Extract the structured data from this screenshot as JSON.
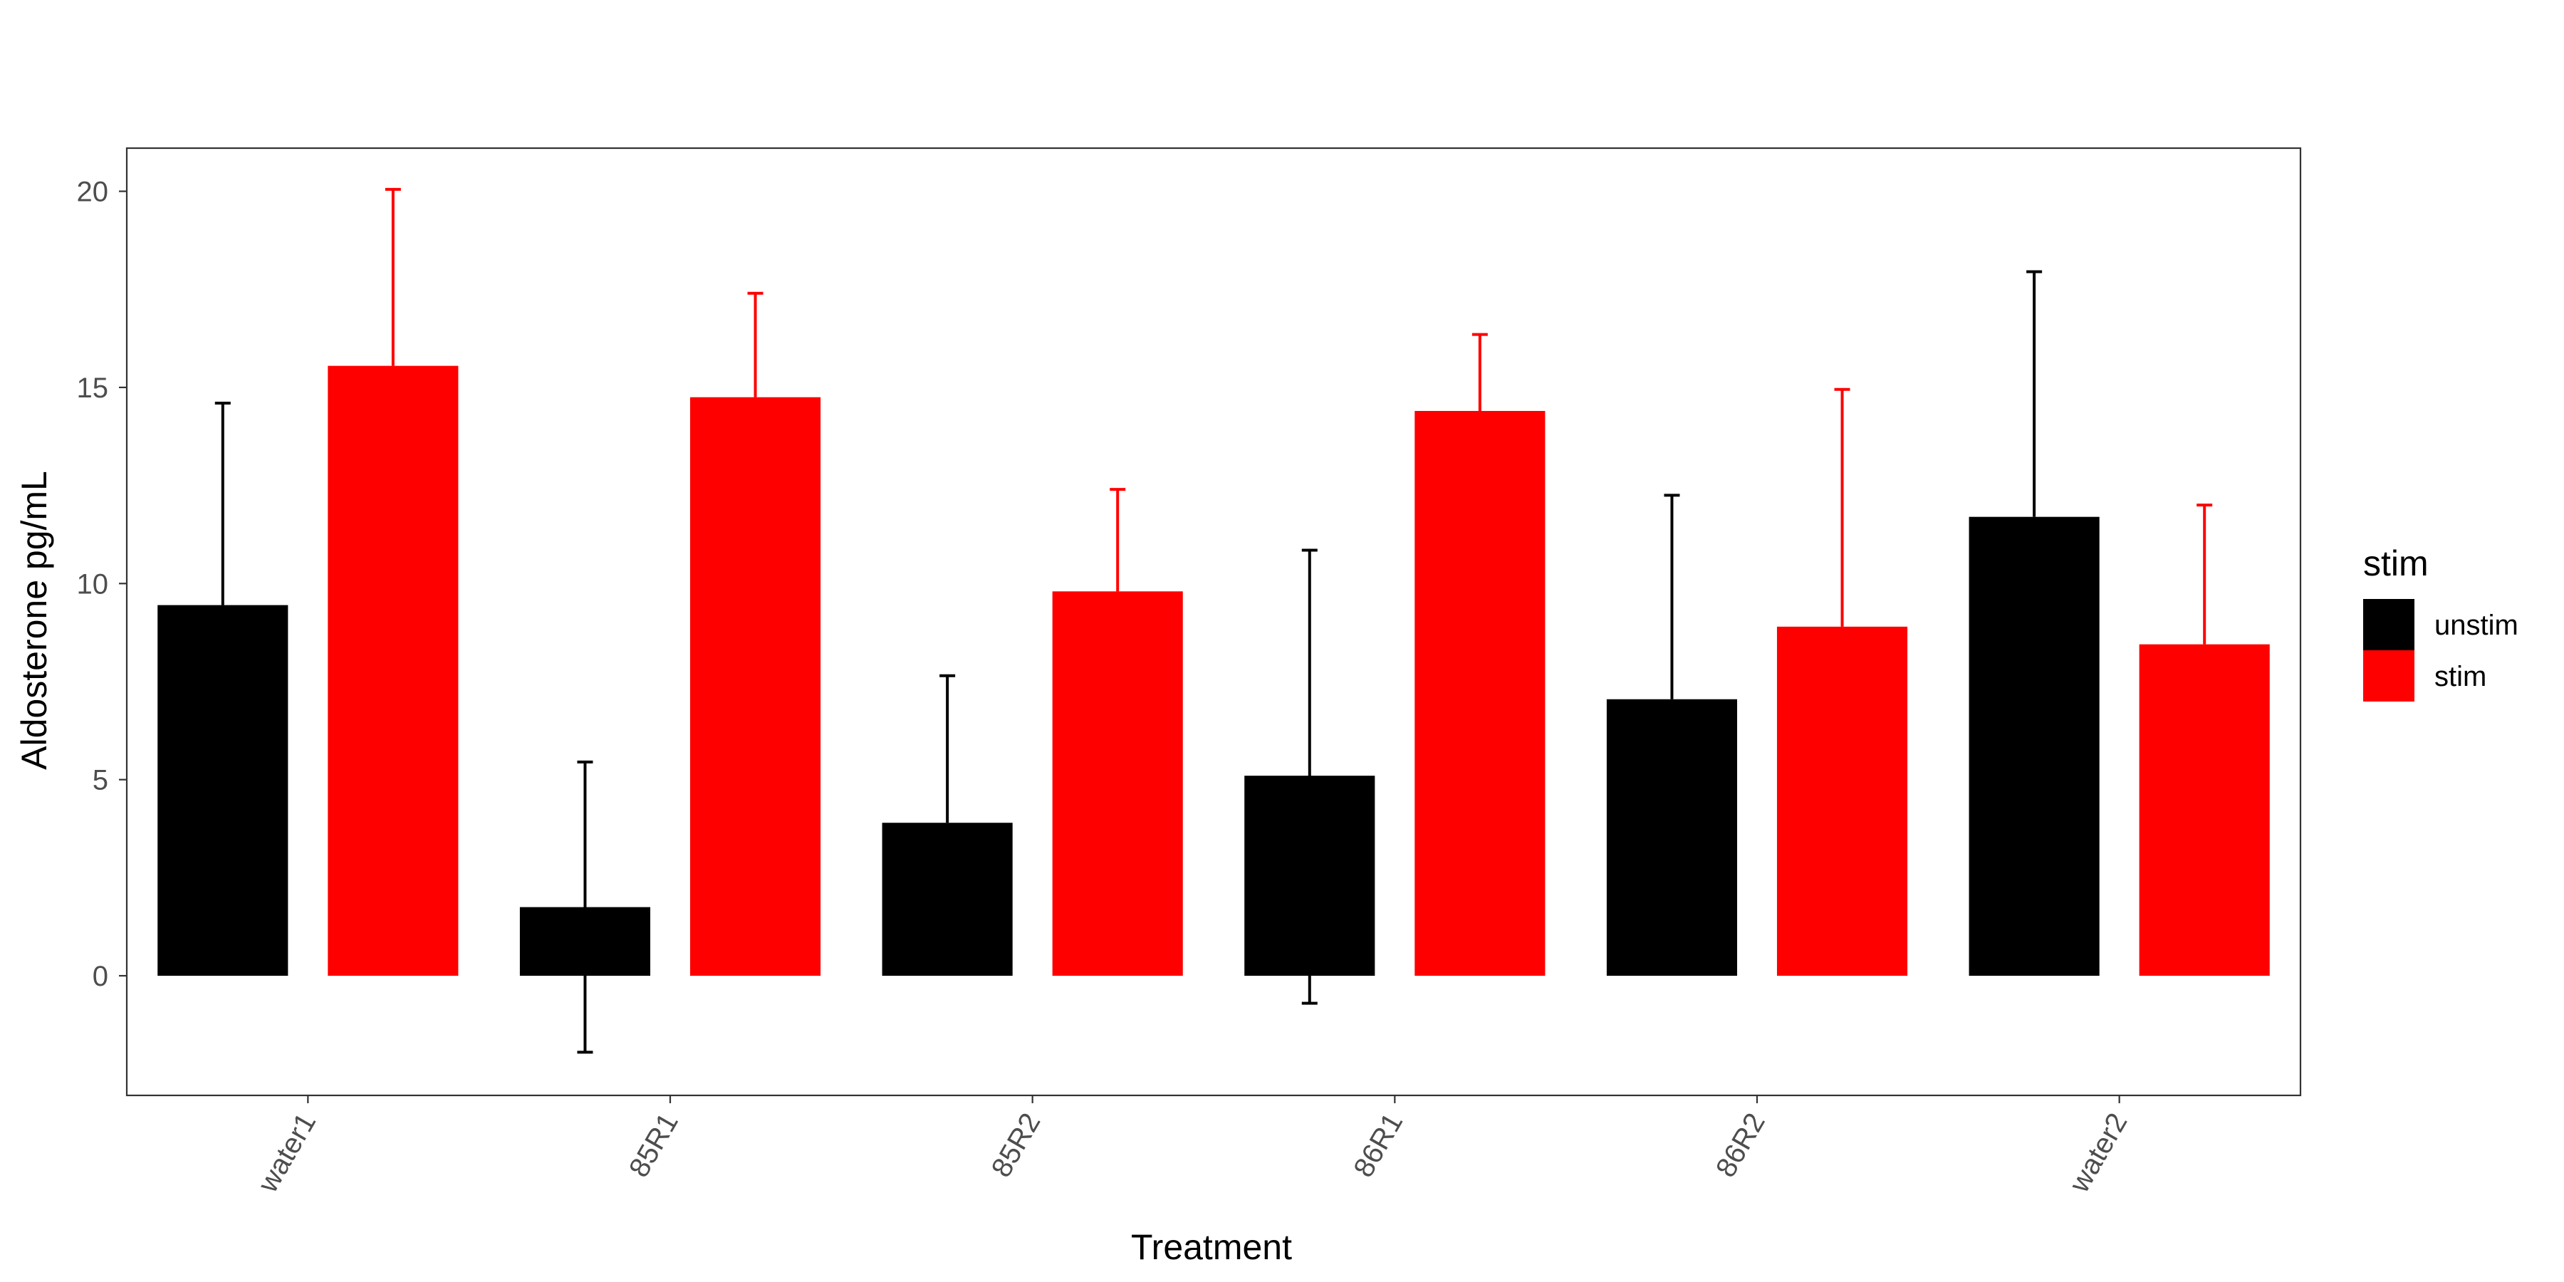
{
  "chart_data": {
    "type": "bar",
    "title": "",
    "xlabel": "Treatment",
    "ylabel": "Aldosterone pg/mL",
    "categories": [
      "water1",
      "85R1",
      "85R2",
      "86R1",
      "86R2",
      "water2"
    ],
    "series": [
      {
        "name": "unstim",
        "color": "#000000",
        "values": [
          9.45,
          1.75,
          3.9,
          5.1,
          7.05,
          11.7
        ],
        "error_upper": [
          14.6,
          5.45,
          7.65,
          10.85,
          12.25,
          17.95
        ],
        "error_lower": [
          9.45,
          -1.95,
          3.9,
          -0.7,
          7.05,
          11.7
        ]
      },
      {
        "name": "stim",
        "color": "#ff0000",
        "values": [
          15.55,
          14.75,
          9.8,
          14.4,
          8.9,
          8.45
        ],
        "error_upper": [
          20.05,
          17.4,
          12.4,
          16.35,
          14.95,
          12.0
        ],
        "error_lower": [
          15.55,
          14.75,
          9.8,
          14.4,
          8.9,
          8.45
        ]
      }
    ],
    "ylim": [
      -3.05,
      21.1
    ],
    "yticks": [
      0,
      5,
      10,
      15,
      20
    ],
    "ytick_labels": [
      "0",
      "5",
      "10",
      "15",
      "20"
    ],
    "grid": false,
    "legend": {
      "title": "stim",
      "position": "right",
      "entries": [
        "unstim",
        "stim"
      ]
    }
  }
}
